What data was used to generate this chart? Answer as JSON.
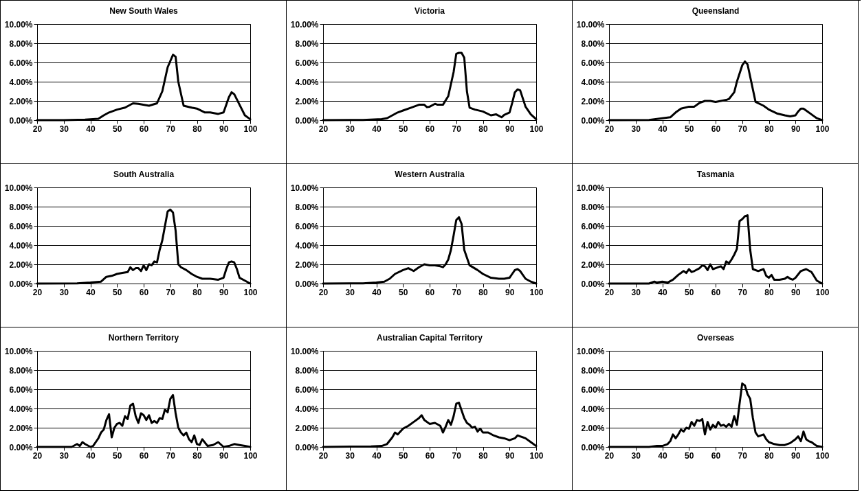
{
  "chart_data": [
    {
      "type": "line",
      "title": "New South Wales",
      "x": [
        20,
        30,
        38,
        43,
        45,
        47,
        50,
        53,
        56,
        58,
        62,
        65,
        67,
        69,
        71,
        72,
        73,
        75,
        78,
        80,
        83,
        85,
        88,
        90,
        92,
        93,
        94,
        96,
        98,
        100
      ],
      "series": [
        {
          "color": "#000000",
          "values": [
            0,
            0,
            0.05,
            0.15,
            0.5,
            0.8,
            1.1,
            1.3,
            1.75,
            1.7,
            1.5,
            1.75,
            3,
            5.5,
            6.8,
            6.6,
            4,
            1.5,
            1.3,
            1.2,
            0.8,
            0.8,
            0.65,
            0.8,
            2.4,
            2.9,
            2.7,
            1.6,
            0.5,
            0.1
          ]
        }
      ],
      "xlim": [
        20,
        100
      ],
      "ylim": [
        0,
        10
      ],
      "xticks": [
        20,
        30,
        40,
        50,
        60,
        70,
        80,
        90,
        100
      ],
      "yticks": [
        {
          "value": 0,
          "label": "0.00%"
        },
        {
          "value": 2,
          "label": "2.00%"
        },
        {
          "value": 4,
          "label": "4.00%"
        },
        {
          "value": 6,
          "label": "6.00%"
        },
        {
          "value": 8,
          "label": "8.00%"
        },
        {
          "value": 10,
          "label": "10.00%"
        }
      ],
      "grid": "y",
      "legend": false,
      "marker": "none",
      "line_style": "solid"
    },
    {
      "type": "line",
      "title": "Victoria",
      "x": [
        20,
        35,
        42,
        44,
        46,
        48,
        50,
        53,
        56,
        58,
        59,
        60,
        62,
        63,
        65,
        67,
        69,
        70,
        71,
        72,
        73,
        74,
        75,
        77,
        80,
        83,
        85,
        87,
        88,
        90,
        91,
        92,
        93,
        94,
        96,
        98,
        100
      ],
      "series": [
        {
          "color": "#000000",
          "values": [
            0,
            0.02,
            0.1,
            0.2,
            0.5,
            0.8,
            1,
            1.3,
            1.6,
            1.6,
            1.35,
            1.4,
            1.7,
            1.6,
            1.6,
            2.5,
            5,
            6.9,
            7,
            7,
            6.5,
            3,
            1.3,
            1.1,
            0.9,
            0.5,
            0.6,
            0.3,
            0.55,
            0.8,
            1.8,
            2.9,
            3.2,
            3.1,
            1.4,
            0.6,
            0.1
          ]
        }
      ],
      "xlim": [
        20,
        100
      ],
      "ylim": [
        0,
        10
      ],
      "xticks": [
        20,
        30,
        40,
        50,
        60,
        70,
        80,
        90,
        100
      ],
      "yticks": [
        {
          "value": 0,
          "label": "0.00%"
        },
        {
          "value": 2,
          "label": "2.00%"
        },
        {
          "value": 4,
          "label": "4.00%"
        },
        {
          "value": 6,
          "label": "6.00%"
        },
        {
          "value": 8,
          "label": "8.00%"
        },
        {
          "value": 10,
          "label": "10.00%"
        }
      ],
      "grid": "y",
      "legend": false,
      "marker": "none",
      "line_style": "solid"
    },
    {
      "type": "line",
      "title": "Queensland",
      "x": [
        20,
        35,
        40,
        43,
        45,
        47,
        50,
        52,
        54,
        56,
        58,
        60,
        62,
        64,
        65,
        67,
        68,
        70,
        71,
        72,
        73,
        75,
        78,
        80,
        83,
        86,
        88,
        90,
        91,
        92,
        93,
        94,
        96,
        98,
        100
      ],
      "series": [
        {
          "color": "#000000",
          "values": [
            0,
            0.02,
            0.2,
            0.3,
            0.8,
            1.2,
            1.4,
            1.4,
            1.8,
            2,
            2,
            1.9,
            2,
            2.1,
            2.2,
            2.9,
            4,
            5.7,
            6.1,
            5.8,
            4.5,
            1.9,
            1.5,
            1.1,
            0.7,
            0.5,
            0.4,
            0.5,
            0.9,
            1.2,
            1.2,
            1,
            0.6,
            0.2,
            0
          ]
        }
      ],
      "xlim": [
        20,
        100
      ],
      "ylim": [
        0,
        10
      ],
      "xticks": [
        20,
        30,
        40,
        50,
        60,
        70,
        80,
        90,
        100
      ],
      "yticks": [
        {
          "value": 0,
          "label": "0.00%"
        },
        {
          "value": 2,
          "label": "2.00%"
        },
        {
          "value": 4,
          "label": "4.00%"
        },
        {
          "value": 6,
          "label": "6.00%"
        },
        {
          "value": 8,
          "label": "8.00%"
        },
        {
          "value": 10,
          "label": "10.00%"
        }
      ],
      "grid": "y",
      "legend": false,
      "marker": "none",
      "line_style": "solid"
    },
    {
      "type": "line",
      "title": "South Australia",
      "x": [
        20,
        35,
        40,
        44,
        46,
        48,
        50,
        52,
        54,
        55,
        56,
        57,
        58,
        59,
        60,
        61,
        62,
        63,
        64,
        65,
        66,
        67,
        68,
        69,
        70,
        71,
        72,
        73,
        74,
        76,
        78,
        80,
        82,
        85,
        88,
        90,
        91,
        92,
        93,
        94,
        95,
        96,
        98,
        100
      ],
      "series": [
        {
          "color": "#000000",
          "values": [
            0,
            0.02,
            0.1,
            0.2,
            0.7,
            0.8,
            1,
            1.1,
            1.2,
            1.7,
            1.4,
            1.6,
            1.6,
            1.3,
            1.9,
            1.4,
            2,
            1.9,
            2.3,
            2.2,
            3.5,
            4.5,
            6,
            7.5,
            7.7,
            7.4,
            5.5,
            2,
            1.7,
            1.4,
            1,
            0.7,
            0.5,
            0.5,
            0.4,
            0.6,
            1.5,
            2.2,
            2.3,
            2.2,
            1.5,
            0.6,
            0.3,
            0
          ]
        }
      ],
      "xlim": [
        20,
        100
      ],
      "ylim": [
        0,
        10
      ],
      "xticks": [
        20,
        30,
        40,
        50,
        60,
        70,
        80,
        90,
        100
      ],
      "yticks": [
        {
          "value": 0,
          "label": "0.00%"
        },
        {
          "value": 2,
          "label": "2.00%"
        },
        {
          "value": 4,
          "label": "4.00%"
        },
        {
          "value": 6,
          "label": "6.00%"
        },
        {
          "value": 8,
          "label": "8.00%"
        },
        {
          "value": 10,
          "label": "10.00%"
        }
      ],
      "grid": "y",
      "legend": false,
      "marker": "none",
      "line_style": "solid"
    },
    {
      "type": "line",
      "title": "Western Australia",
      "x": [
        20,
        35,
        40,
        43,
        45,
        47,
        50,
        52,
        54,
        56,
        58,
        60,
        62,
        64,
        65,
        66,
        67,
        68,
        69,
        70,
        71,
        72,
        73,
        75,
        78,
        80,
        83,
        86,
        88,
        90,
        91,
        92,
        93,
        94,
        96,
        98,
        100
      ],
      "series": [
        {
          "color": "#000000",
          "values": [
            0,
            0.02,
            0.1,
            0.2,
            0.5,
            1,
            1.4,
            1.6,
            1.3,
            1.7,
            2,
            1.9,
            1.9,
            1.8,
            1.7,
            2,
            2.5,
            3.5,
            5,
            6.6,
            6.9,
            6.2,
            3.5,
            1.9,
            1.4,
            1.0,
            0.6,
            0.5,
            0.5,
            0.6,
            1,
            1.4,
            1.5,
            1.3,
            0.5,
            0.2,
            0
          ]
        }
      ],
      "xlim": [
        20,
        100
      ],
      "ylim": [
        0,
        10
      ],
      "xticks": [
        20,
        30,
        40,
        50,
        60,
        70,
        80,
        90,
        100
      ],
      "yticks": [
        {
          "value": 0,
          "label": "0.00%"
        },
        {
          "value": 2,
          "label": "2.00%"
        },
        {
          "value": 4,
          "label": "4.00%"
        },
        {
          "value": 6,
          "label": "6.00%"
        },
        {
          "value": 8,
          "label": "8.00%"
        },
        {
          "value": 10,
          "label": "10.00%"
        }
      ],
      "grid": "y",
      "legend": false,
      "marker": "none",
      "line_style": "solid"
    },
    {
      "type": "line",
      "title": "Tasmania",
      "x": [
        20,
        35,
        37,
        38,
        40,
        42,
        44,
        46,
        48,
        49,
        50,
        51,
        52,
        54,
        55,
        56,
        57,
        58,
        59,
        60,
        61,
        62,
        63,
        64,
        65,
        66,
        67,
        68,
        69,
        70,
        71,
        72,
        73,
        74,
        76,
        78,
        79,
        80,
        81,
        82,
        84,
        86,
        87,
        88,
        89,
        90,
        92,
        94,
        96,
        98,
        100
      ],
      "series": [
        {
          "color": "#000000",
          "values": [
            0,
            0,
            0.2,
            0.1,
            0.2,
            0.1,
            0.4,
            0.9,
            1.3,
            1.1,
            1.5,
            1.2,
            1.3,
            1.6,
            1.9,
            1.8,
            1.4,
            2,
            1.5,
            1.6,
            1.7,
            1.8,
            1.5,
            2.3,
            2.1,
            2.5,
            3,
            3.6,
            6.5,
            6.7,
            7,
            7.1,
            3.5,
            1.5,
            1.3,
            1.5,
            0.8,
            0.6,
            0.9,
            0.4,
            0.4,
            0.5,
            0.7,
            0.5,
            0.4,
            0.6,
            1.3,
            1.5,
            1.2,
            0.3,
            0
          ]
        }
      ],
      "xlim": [
        20,
        100
      ],
      "ylim": [
        0,
        10
      ],
      "xticks": [
        20,
        30,
        40,
        50,
        60,
        70,
        80,
        90,
        100
      ],
      "yticks": [
        {
          "value": 0,
          "label": "0.00%"
        },
        {
          "value": 2,
          "label": "2.00%"
        },
        {
          "value": 4,
          "label": "4.00%"
        },
        {
          "value": 6,
          "label": "6.00%"
        },
        {
          "value": 8,
          "label": "8.00%"
        },
        {
          "value": 10,
          "label": "10.00%"
        }
      ],
      "grid": "y",
      "legend": false,
      "marker": "none",
      "line_style": "solid"
    },
    {
      "type": "line",
      "title": "Northern Territory",
      "x": [
        20,
        33,
        35,
        36,
        37,
        38,
        40,
        41,
        42,
        43,
        44,
        45,
        46,
        47,
        48,
        49,
        50,
        51,
        52,
        53,
        54,
        55,
        56,
        57,
        58,
        59,
        60,
        61,
        62,
        63,
        64,
        65,
        66,
        67,
        68,
        69,
        70,
        71,
        72,
        73,
        74,
        75,
        76,
        77,
        78,
        79,
        80,
        81,
        82,
        84,
        86,
        88,
        90,
        92,
        94,
        96,
        98,
        100
      ],
      "series": [
        {
          "color": "#000000",
          "values": [
            0,
            0,
            0.3,
            0.1,
            0.5,
            0.3,
            0,
            0.1,
            0.5,
            0.9,
            1.5,
            1.8,
            2.8,
            3.4,
            1.0,
            2,
            2.4,
            2.5,
            2.2,
            3.2,
            2.9,
            4.3,
            4.5,
            3.2,
            2.5,
            3.5,
            3.3,
            2.8,
            3.3,
            2.5,
            2.7,
            2.5,
            3,
            2.9,
            3.9,
            3.6,
            5.0,
            5.4,
            3.5,
            2,
            1.5,
            1.2,
            1.5,
            0.8,
            0.5,
            1.2,
            0.3,
            0.2,
            0.8,
            0.1,
            0.2,
            0.5,
            0,
            0.1,
            0.3,
            0.2,
            0.1,
            0
          ]
        }
      ],
      "xlim": [
        20,
        100
      ],
      "ylim": [
        0,
        10
      ],
      "xticks": [
        20,
        30,
        40,
        50,
        60,
        70,
        80,
        90,
        100
      ],
      "yticks": [
        {
          "value": 0,
          "label": "0.00%"
        },
        {
          "value": 2,
          "label": "2.00%"
        },
        {
          "value": 4,
          "label": "4.00%"
        },
        {
          "value": 6,
          "label": "6.00%"
        },
        {
          "value": 8,
          "label": "8.00%"
        },
        {
          "value": 10,
          "label": "10.00%"
        }
      ],
      "grid": "y",
      "legend": false,
      "marker": "none",
      "line_style": "solid"
    },
    {
      "type": "line",
      "title": "Australian Capital Territory",
      "x": [
        20,
        38,
        42,
        44,
        46,
        47,
        48,
        50,
        52,
        54,
        56,
        57,
        58,
        60,
        62,
        64,
        65,
        66,
        67,
        68,
        69,
        70,
        71,
        72,
        73,
        74,
        75,
        76,
        77,
        78,
        79,
        80,
        82,
        84,
        86,
        88,
        90,
        92,
        93,
        94,
        96,
        98,
        100
      ],
      "series": [
        {
          "color": "#000000",
          "values": [
            0,
            0.05,
            0.1,
            0.3,
            1,
            1.5,
            1.3,
            1.9,
            2.2,
            2.6,
            3,
            3.3,
            2.8,
            2.4,
            2.5,
            2.2,
            1.5,
            2.1,
            2.8,
            2.3,
            3.2,
            4.5,
            4.6,
            3.8,
            3,
            2.5,
            2.3,
            2.0,
            2.1,
            1.6,
            1.9,
            1.5,
            1.5,
            1.2,
            1,
            0.9,
            0.7,
            0.9,
            1.2,
            1.1,
            0.9,
            0.5,
            0.1
          ]
        }
      ],
      "xlim": [
        20,
        100
      ],
      "ylim": [
        0,
        10
      ],
      "xticks": [
        20,
        30,
        40,
        50,
        60,
        70,
        80,
        90,
        100
      ],
      "yticks": [
        {
          "value": 0,
          "label": "0.00%"
        },
        {
          "value": 2,
          "label": "2.00%"
        },
        {
          "value": 4,
          "label": "4.00%"
        },
        {
          "value": 6,
          "label": "6.00%"
        },
        {
          "value": 8,
          "label": "8.00%"
        },
        {
          "value": 10,
          "label": "10.00%"
        }
      ],
      "grid": "y",
      "legend": false,
      "marker": "none",
      "line_style": "solid"
    },
    {
      "type": "line",
      "title": "Overseas",
      "x": [
        20,
        35,
        38,
        40,
        42,
        43,
        44,
        45,
        46,
        47,
        48,
        49,
        50,
        51,
        52,
        53,
        54,
        55,
        56,
        57,
        58,
        59,
        60,
        61,
        62,
        63,
        64,
        65,
        66,
        67,
        68,
        69,
        70,
        71,
        72,
        73,
        74,
        75,
        76,
        78,
        79,
        80,
        82,
        84,
        86,
        88,
        90,
        91,
        92,
        93,
        94,
        95,
        96,
        98,
        100
      ],
      "series": [
        {
          "color": "#000000",
          "values": [
            0,
            0,
            0.1,
            0.1,
            0.3,
            0.6,
            1.3,
            0.9,
            1.3,
            1.8,
            1.6,
            2,
            1.9,
            2.6,
            2.2,
            2.8,
            2.7,
            2.9,
            1.3,
            2.6,
            1.8,
            2.3,
            2.0,
            2.6,
            2.2,
            2.3,
            2.1,
            2.4,
            2.1,
            3.2,
            2.3,
            4.5,
            6.6,
            6.4,
            5.5,
            5.0,
            3,
            1.5,
            1.1,
            1.3,
            0.8,
            0.5,
            0.3,
            0.2,
            0.2,
            0.4,
            0.8,
            1.1,
            0.6,
            1.6,
            0.8,
            0.6,
            0.5,
            0.1,
            0
          ]
        }
      ],
      "xlim": [
        20,
        100
      ],
      "ylim": [
        0,
        10
      ],
      "xticks": [
        20,
        30,
        40,
        50,
        60,
        70,
        80,
        90,
        100
      ],
      "yticks": [
        {
          "value": 0,
          "label": "0.00%"
        },
        {
          "value": 2,
          "label": "2.00%"
        },
        {
          "value": 4,
          "label": "4.00%"
        },
        {
          "value": 6,
          "label": "6.00%"
        },
        {
          "value": 8,
          "label": "8.00%"
        },
        {
          "value": 10,
          "label": "10.00%"
        }
      ],
      "grid": "y",
      "legend": false,
      "marker": "none",
      "line_style": "solid"
    }
  ]
}
